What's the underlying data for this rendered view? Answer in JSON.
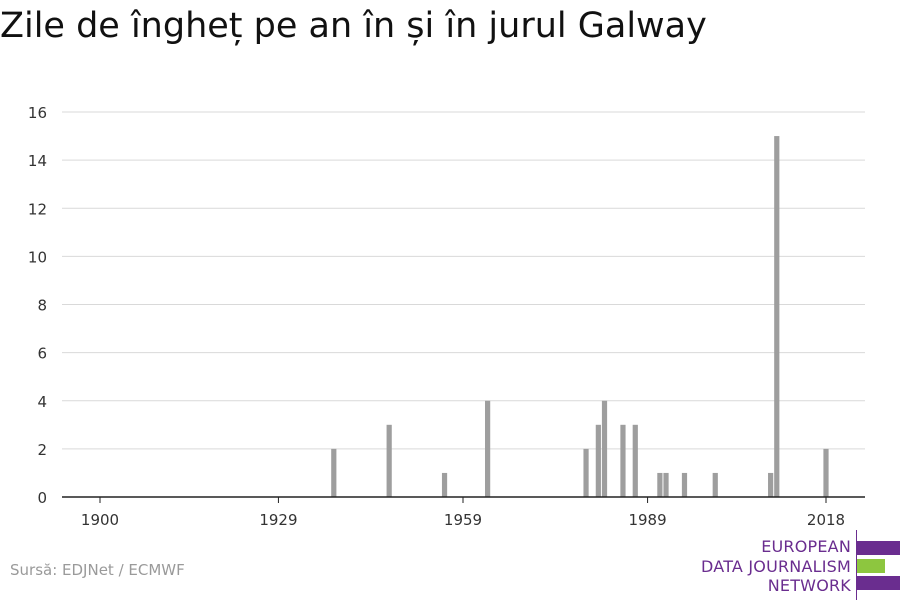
{
  "chart_data": {
    "type": "bar",
    "title": "Zile de îngheț pe an în și în jurul Galway",
    "xlabel": "",
    "ylabel": "",
    "x_ticks": [
      "1900",
      "1929",
      "1959",
      "1989",
      "2018"
    ],
    "y_ticks": [
      0,
      2,
      4,
      6,
      8,
      10,
      12,
      14,
      16
    ],
    "xlim": [
      1900,
      2018
    ],
    "ylim": [
      0,
      16
    ],
    "grid": true,
    "bar_color": "#9e9e9e",
    "points": [
      {
        "year": 1938,
        "value": 2
      },
      {
        "year": 1947,
        "value": 3
      },
      {
        "year": 1956,
        "value": 1
      },
      {
        "year": 1963,
        "value": 4
      },
      {
        "year": 1979,
        "value": 2
      },
      {
        "year": 1981,
        "value": 3
      },
      {
        "year": 1982,
        "value": 4
      },
      {
        "year": 1985,
        "value": 3
      },
      {
        "year": 1987,
        "value": 3
      },
      {
        "year": 1991,
        "value": 1
      },
      {
        "year": 1992,
        "value": 1
      },
      {
        "year": 1995,
        "value": 1
      },
      {
        "year": 2000,
        "value": 1
      },
      {
        "year": 2009,
        "value": 1
      },
      {
        "year": 2010,
        "value": 15
      },
      {
        "year": 2018,
        "value": 2
      }
    ]
  },
  "source": "Sursă: EDJNet / ECMWF",
  "logo": {
    "lines": [
      "EUROPEAN",
      "DATA JOURNALISM",
      "NETWORK"
    ],
    "colors": {
      "purple": "#6a2d8f",
      "green": "#8dc63f"
    }
  }
}
